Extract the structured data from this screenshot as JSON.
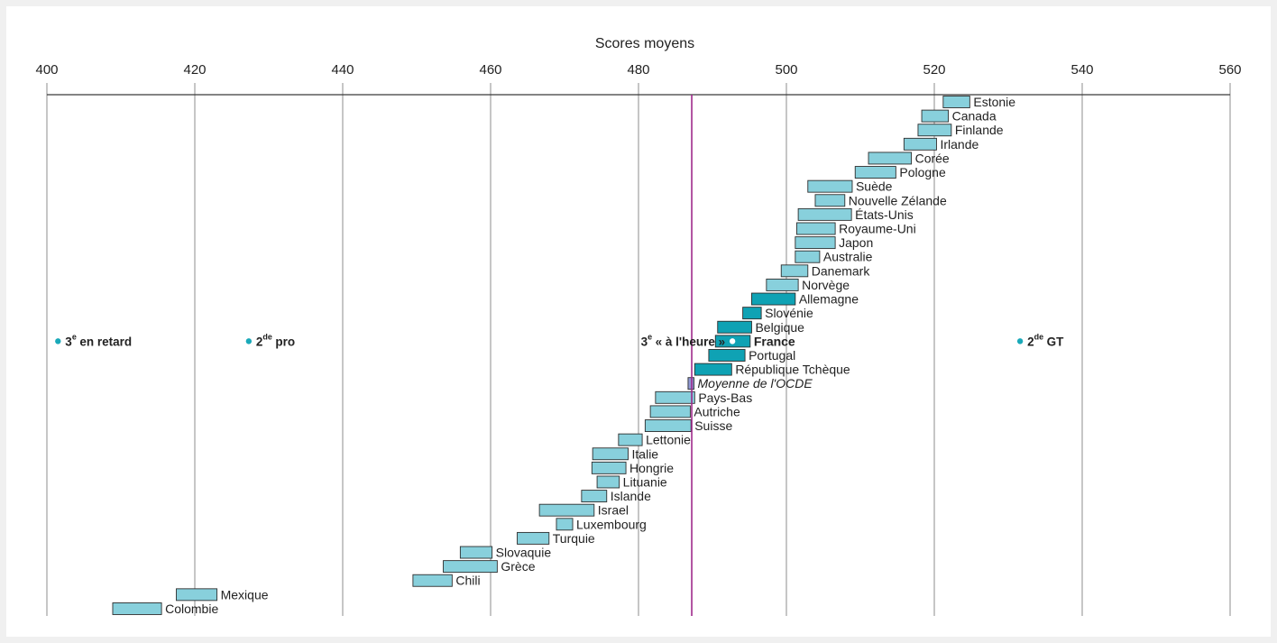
{
  "colors": {
    "background": "#f0f0f0",
    "panel": "#ffffff",
    "text": "#222222",
    "grid": "#8e8e8e",
    "axis": "#3a3a3a",
    "bar": "#88d0dc",
    "bar_highlight": "#0fa2b4",
    "bar_average": "#8f97d2",
    "bar_stroke": "#2e2e2e",
    "reference_line": "#9e2a8b",
    "point": "#1aa9b9"
  },
  "chart_data": {
    "type": "bar",
    "orientation": "horizontal",
    "xlabel": "Scores moyens",
    "xlim": [
      400,
      560
    ],
    "xticks": [
      400,
      420,
      440,
      460,
      480,
      500,
      520,
      540,
      560
    ],
    "grid": true,
    "bars": [
      {
        "label": "Estonie",
        "low": 521.2,
        "high": 524.8
      },
      {
        "label": "Canada",
        "low": 518.3,
        "high": 521.9
      },
      {
        "label": "Finlande",
        "low": 517.8,
        "high": 522.3
      },
      {
        "label": "Irlande",
        "low": 515.9,
        "high": 520.3
      },
      {
        "label": "Corée",
        "low": 511.1,
        "high": 516.9
      },
      {
        "label": "Pologne",
        "low": 509.3,
        "high": 514.8
      },
      {
        "label": "Suède",
        "low": 502.9,
        "high": 508.9
      },
      {
        "label": "Nouvelle Zélande",
        "low": 503.9,
        "high": 507.9
      },
      {
        "label": "États-Unis",
        "low": 501.6,
        "high": 508.8
      },
      {
        "label": "Royaume-Uni",
        "low": 501.4,
        "high": 506.6
      },
      {
        "label": "Japon",
        "low": 501.2,
        "high": 506.6
      },
      {
        "label": "Australie",
        "low": 501.2,
        "high": 504.5
      },
      {
        "label": "Danemark",
        "low": 499.3,
        "high": 502.9
      },
      {
        "label": "Norvège",
        "low": 497.3,
        "high": 501.6
      },
      {
        "label": "Allemagne",
        "low": 495.3,
        "high": 501.2,
        "highlight": true
      },
      {
        "label": "Slovénie",
        "low": 494.1,
        "high": 496.6,
        "highlight": true
      },
      {
        "label": "Belgique",
        "low": 490.7,
        "high": 495.3,
        "highlight": true
      },
      {
        "label": "France",
        "low": 490.4,
        "high": 495.1,
        "highlight": true,
        "bold": true
      },
      {
        "label": "Portugal",
        "low": 489.5,
        "high": 494.4,
        "highlight": true
      },
      {
        "label": "République Tchèque",
        "low": 487.6,
        "high": 492.6,
        "highlight": true
      },
      {
        "label": "Moyenne de l'OCDE",
        "low": 486.7,
        "high": 487.5,
        "average": true,
        "italic": true
      },
      {
        "label": "Pays-Bas",
        "low": 482.3,
        "high": 487.6
      },
      {
        "label": "Autriche",
        "low": 481.6,
        "high": 487.0
      },
      {
        "label": "Suisse",
        "low": 480.9,
        "high": 487.1
      },
      {
        "label": "Lettonie",
        "low": 477.3,
        "high": 480.5
      },
      {
        "label": "Italie",
        "low": 473.8,
        "high": 478.6
      },
      {
        "label": "Hongrie",
        "low": 473.7,
        "high": 478.3
      },
      {
        "label": "Lituanie",
        "low": 474.4,
        "high": 477.4
      },
      {
        "label": "Islande",
        "low": 472.3,
        "high": 475.7
      },
      {
        "label": "Israel",
        "low": 466.6,
        "high": 474.0
      },
      {
        "label": "Luxembourg",
        "low": 468.9,
        "high": 471.1
      },
      {
        "label": "Turquie",
        "low": 463.6,
        "high": 467.9
      },
      {
        "label": "Slovaquie",
        "low": 455.9,
        "high": 460.2
      },
      {
        "label": "Grèce",
        "low": 453.6,
        "high": 460.9
      },
      {
        "label": "Chili",
        "low": 449.5,
        "high": 454.8
      },
      {
        "label": "Mexique",
        "low": 417.5,
        "high": 423.0
      },
      {
        "label": "Colombie",
        "low": 408.9,
        "high": 415.5
      }
    ],
    "reference_line": {
      "value": 487.2
    },
    "points": [
      {
        "num": "3",
        "sup": "e",
        "text": "en retard",
        "value": 401.5,
        "color": "#1aa9b9"
      },
      {
        "num": "2",
        "sup": "de",
        "text": "pro",
        "value": 427.3,
        "color": "#1aa9b9"
      },
      {
        "num": "3",
        "sup": "e",
        "text": "« à l'heure »",
        "value": 492.7,
        "color": "#ffffff",
        "label_before": true
      },
      {
        "num": "2",
        "sup": "de",
        "text": "GT",
        "value": 531.6,
        "color": "#1aa9b9"
      }
    ]
  }
}
